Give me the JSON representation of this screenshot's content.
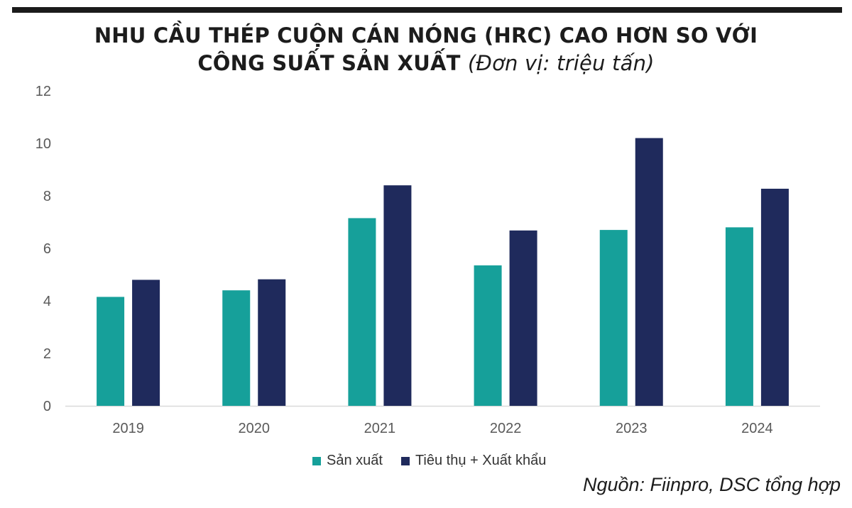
{
  "title": {
    "line1": "NHU CẦU THÉP CUỘN CÁN NÓNG (HRC) CAO HƠN SO VỚI",
    "line2": "CÔNG SUẤT SẢN XUẤT",
    "unit": "(Đơn vị: triệu tấn)"
  },
  "source": "Nguồn: Fiinpro, DSC tổng hợp",
  "colors": {
    "production": "#16a09a",
    "consumption": "#1f2a5c",
    "axis": "#d9d9d9",
    "tick_text": "#595959"
  },
  "legend": {
    "production": "Sản xuất",
    "consumption": "Tiêu thụ + Xuất khẩu"
  },
  "chart_data": {
    "type": "bar",
    "categories": [
      "2019",
      "2020",
      "2021",
      "2022",
      "2023",
      "2024"
    ],
    "series": [
      {
        "name": "Sản xuất",
        "values": [
          4.15,
          4.4,
          7.15,
          5.35,
          6.7,
          6.8
        ]
      },
      {
        "name": "Tiêu thụ + Xuất khẩu",
        "values": [
          4.8,
          4.82,
          8.4,
          6.68,
          10.2,
          8.27
        ]
      }
    ],
    "ylim": [
      0,
      12
    ],
    "yticks": [
      "0",
      "2",
      "4",
      "6",
      "8",
      "10",
      "12"
    ],
    "grid": false,
    "legend_position": "bottom"
  }
}
